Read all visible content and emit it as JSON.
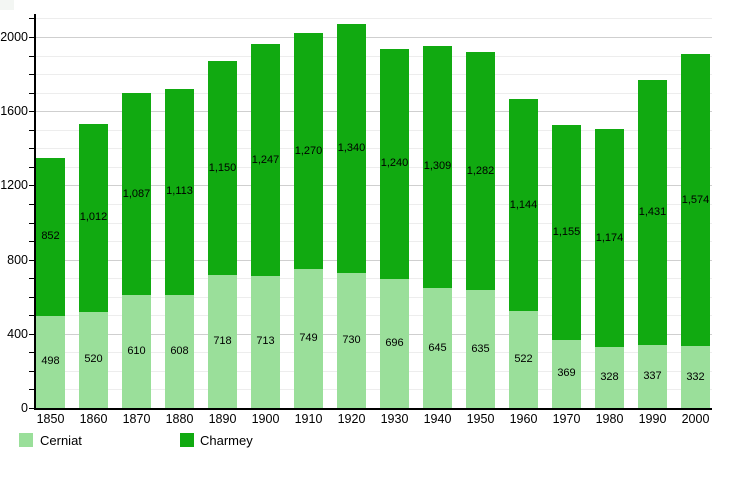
{
  "chart_data": {
    "type": "bar",
    "stacked": true,
    "title": "",
    "xlabel": "",
    "ylabel": "",
    "categories": [
      "1850",
      "1860",
      "1870",
      "1880",
      "1890",
      "1900",
      "1910",
      "1920",
      "1930",
      "1940",
      "1950",
      "1960",
      "1970",
      "1980",
      "1990",
      "2000"
    ],
    "series": [
      {
        "name": "Cerniat",
        "color": "#9adf9a",
        "values": [
          498,
          520,
          610,
          608,
          718,
          713,
          749,
          730,
          696,
          645,
          635,
          522,
          369,
          328,
          337,
          332
        ]
      },
      {
        "name": "Charmey",
        "color": "#11aa11",
        "values": [
          852,
          1012,
          1087,
          1113,
          1150,
          1247,
          1270,
          1340,
          1240,
          1309,
          1282,
          1144,
          1155,
          1174,
          1431,
          1574
        ]
      }
    ],
    "ylim": [
      0,
      2100
    ],
    "ytick_major_values": [
      0,
      400,
      800,
      1200,
      1600,
      2000
    ],
    "ytick_labels": [
      "0",
      "400",
      "800",
      "1200",
      "1600",
      "2000"
    ],
    "ytick_minor_step": 100,
    "grid": true,
    "value_labels": "inside-segments, thousands-separated",
    "legend_position": "bottom"
  },
  "legend": {
    "items": [
      {
        "label": "Cerniat",
        "color": "#9adf9a"
      },
      {
        "label": "Charmey",
        "color": "#11aa11"
      }
    ]
  }
}
